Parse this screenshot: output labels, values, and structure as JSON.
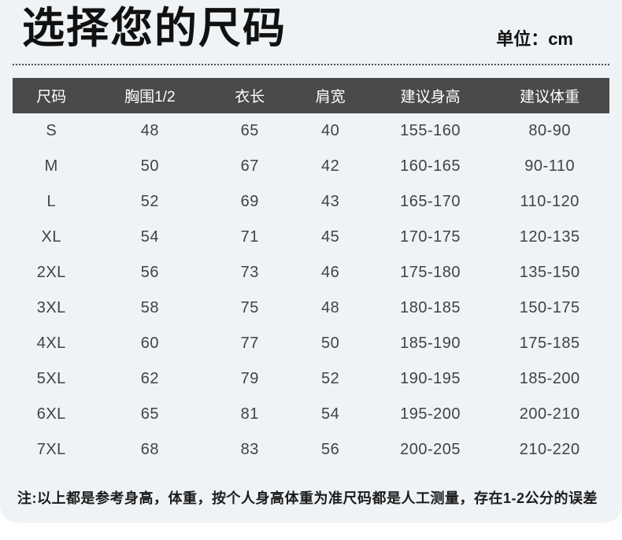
{
  "page": {
    "title": "选择您的尺码",
    "unit_label": "单位：cm",
    "note": "注:以上都是参考身高，体重，按个人身高体重为准尺码都是人工测量，存在1-2公分的误差"
  },
  "colors": {
    "card_background": "#eff3f6",
    "header_background": "#4a4a4a",
    "header_text": "#ffffff",
    "cell_text": "#424242",
    "title_text": "#111111"
  },
  "table": {
    "columns": [
      "尺码",
      "胸围1/2",
      "衣长",
      "肩宽",
      "建议身高",
      "建议体重"
    ],
    "rows": [
      [
        "S",
        "48",
        "65",
        "40",
        "155-160",
        "80-90"
      ],
      [
        "M",
        "50",
        "67",
        "42",
        "160-165",
        "90-110"
      ],
      [
        "L",
        "52",
        "69",
        "43",
        "165-170",
        "110-120"
      ],
      [
        "XL",
        "54",
        "71",
        "45",
        "170-175",
        "120-135"
      ],
      [
        "2XL",
        "56",
        "73",
        "46",
        "175-180",
        "135-150"
      ],
      [
        "3XL",
        "58",
        "75",
        "48",
        "180-185",
        "150-175"
      ],
      [
        "4XL",
        "60",
        "77",
        "50",
        "185-190",
        "175-185"
      ],
      [
        "5XL",
        "62",
        "79",
        "52",
        "190-195",
        "185-200"
      ],
      [
        "6XL",
        "65",
        "81",
        "54",
        "195-200",
        "200-210"
      ],
      [
        "7XL",
        "68",
        "83",
        "56",
        "200-205",
        "210-220"
      ]
    ]
  }
}
